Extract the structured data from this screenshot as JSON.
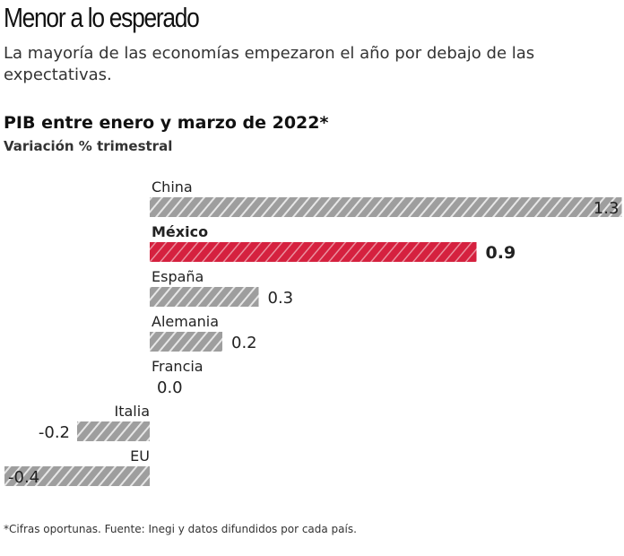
{
  "header": {
    "title": "Menor a lo esperado",
    "subtitle": "La mayoría de las economías empezaron el año por debajo de las expectativas."
  },
  "chart_data": {
    "type": "bar",
    "orientation": "horizontal",
    "title": "PIB entre enero y marzo de 2022*",
    "ylabel": "Variación % trimestral",
    "categories": [
      "China",
      "México",
      "España",
      "Alemania",
      "Francia",
      "Italia",
      "EU"
    ],
    "values": [
      1.3,
      0.9,
      0.3,
      0.2,
      0.0,
      -0.2,
      -0.4
    ],
    "value_labels": [
      "1.3",
      "0.9",
      "0.3",
      "0.2",
      "0.0",
      "-0.2",
      "-0.4"
    ],
    "highlight": "México",
    "xlim": [
      -0.4,
      1.3
    ],
    "grid": false,
    "colors": {
      "default": "#9e9e9e",
      "highlight": "#d5213f"
    }
  },
  "footer": {
    "note": "*Cifras oportunas. Fuente: Inegi y datos difundidos por cada país."
  }
}
